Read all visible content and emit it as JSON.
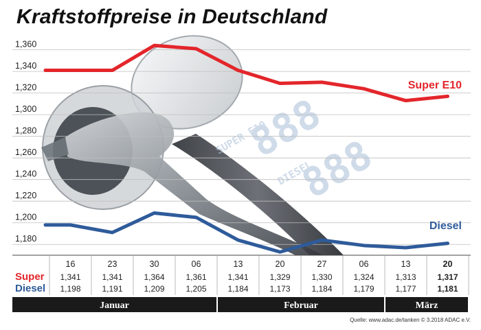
{
  "title": "Kraftstoffpreise in Deutschland",
  "source": "Quelle: www.adac.de/tanken   © 3.2018  ADAC e.V.",
  "colors": {
    "super": "#e3262b",
    "diesel": "#2e5b9a",
    "month_bar": "#1a1a1a"
  },
  "chart_data": {
    "type": "line",
    "x": [
      "16",
      "23",
      "30",
      "06",
      "13",
      "20",
      "27",
      "06",
      "13",
      "20"
    ],
    "ylim": [
      1.17,
      1.368
    ],
    "yticks": [
      "1,360",
      "1,340",
      "1,320",
      "1,300",
      "1,280",
      "1,260",
      "1,240",
      "1,220",
      "1,200",
      "1,180"
    ],
    "yticks_values": [
      1.36,
      1.34,
      1.32,
      1.3,
      1.28,
      1.26,
      1.24,
      1.22,
      1.2,
      1.18
    ],
    "grid": true,
    "series": [
      {
        "name": "Super E10",
        "values": [
          1.341,
          1.341,
          1.364,
          1.361,
          1.341,
          1.329,
          1.33,
          1.324,
          1.313,
          1.317
        ],
        "labels": [
          "1,341",
          "1,341",
          "1,364",
          "1,361",
          "1,341",
          "1,329",
          "1,330",
          "1,324",
          "1,313",
          "1,317"
        ],
        "color": "#e3262b"
      },
      {
        "name": "Diesel",
        "values": [
          1.198,
          1.191,
          1.209,
          1.205,
          1.184,
          1.173,
          1.184,
          1.179,
          1.177,
          1.181
        ],
        "labels": [
          "1,198",
          "1,191",
          "1,209",
          "1,205",
          "1,184",
          "1,173",
          "1,184",
          "1,179",
          "1,177",
          "1,181"
        ],
        "color": "#2e5b9a"
      }
    ],
    "months": [
      {
        "name": "Januar",
        "span": [
          0,
          3
        ]
      },
      {
        "name": "Februar",
        "span": [
          4,
          7
        ]
      },
      {
        "name": "März",
        "span": [
          8,
          9
        ]
      }
    ],
    "row_labels": {
      "super": "Super",
      "diesel": "Diesel"
    },
    "highlight_last": true
  }
}
